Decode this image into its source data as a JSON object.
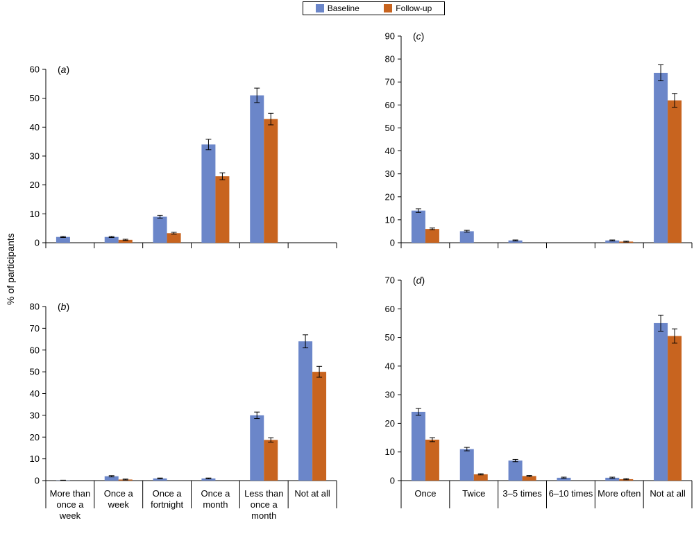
{
  "legend": {
    "baseline_label": "Baseline",
    "followup_label": "Follow-up",
    "baseline_color": "#6b86c9",
    "followup_color": "#c8641f"
  },
  "ylabel": "% of participants",
  "chart_data": [
    {
      "panel": "a",
      "type": "bar",
      "categories": [
        "More than once a week",
        "Once a week",
        "Once a fortnight",
        "Once a month",
        "Less than once a month",
        ""
      ],
      "ylim": [
        0,
        60
      ],
      "yticks": [
        0,
        10,
        20,
        30,
        40,
        50,
        60
      ],
      "series": [
        {
          "name": "Baseline",
          "values": [
            2,
            2,
            9,
            34,
            51,
            null
          ],
          "errors": [
            0.2,
            0.2,
            0.5,
            1.8,
            2.5,
            null
          ]
        },
        {
          "name": "Follow-up",
          "values": [
            null,
            1,
            3.3,
            23,
            42.8,
            null
          ],
          "errors": [
            null,
            0.2,
            0.3,
            1.2,
            2.0,
            null
          ]
        }
      ]
    },
    {
      "panel": "b",
      "type": "bar",
      "categories": [
        "More than once a week",
        "Once a week",
        "Once a fortnight",
        "Once a month",
        "Less than once a month",
        "Not at all"
      ],
      "ylim": [
        0,
        80
      ],
      "yticks": [
        0,
        10,
        20,
        30,
        40,
        50,
        60,
        70,
        80
      ],
      "series": [
        {
          "name": "Baseline",
          "values": [
            0.1,
            2,
            1,
            1,
            30,
            64
          ],
          "errors": [
            0.1,
            0.3,
            0.2,
            0.2,
            1.5,
            3.0
          ]
        },
        {
          "name": "Follow-up",
          "values": [
            null,
            0.5,
            null,
            null,
            18.7,
            50
          ],
          "errors": [
            null,
            0.2,
            null,
            null,
            1.0,
            2.5
          ]
        }
      ]
    },
    {
      "panel": "c",
      "type": "bar",
      "categories": [
        "Once",
        "Twice",
        "3–5 times",
        "6–10 times",
        "More often",
        "Not at all"
      ],
      "ylim": [
        0,
        90
      ],
      "yticks": [
        0,
        10,
        20,
        30,
        40,
        50,
        60,
        70,
        80,
        90
      ],
      "series": [
        {
          "name": "Baseline",
          "values": [
            14,
            5,
            1,
            null,
            1,
            74
          ],
          "errors": [
            0.8,
            0.4,
            0.2,
            null,
            0.2,
            3.5
          ]
        },
        {
          "name": "Follow-up",
          "values": [
            6,
            null,
            null,
            null,
            0.5,
            62
          ],
          "errors": [
            0.4,
            null,
            null,
            null,
            0.2,
            3.0
          ]
        }
      ]
    },
    {
      "panel": "d",
      "type": "bar",
      "categories": [
        "Once",
        "Twice",
        "3–5 times",
        "6–10 times",
        "More often",
        "Not at all"
      ],
      "ylim": [
        0,
        70
      ],
      "yticks": [
        0,
        10,
        20,
        30,
        40,
        50,
        60,
        70
      ],
      "series": [
        {
          "name": "Baseline",
          "values": [
            24,
            11,
            7,
            1,
            1,
            55
          ],
          "errors": [
            1.2,
            0.6,
            0.4,
            0.2,
            0.2,
            2.8
          ]
        },
        {
          "name": "Follow-up",
          "values": [
            14.3,
            2.2,
            1.6,
            null,
            0.5,
            50.5
          ],
          "errors": [
            0.7,
            0.2,
            0.2,
            null,
            0.2,
            2.5
          ]
        }
      ]
    }
  ]
}
